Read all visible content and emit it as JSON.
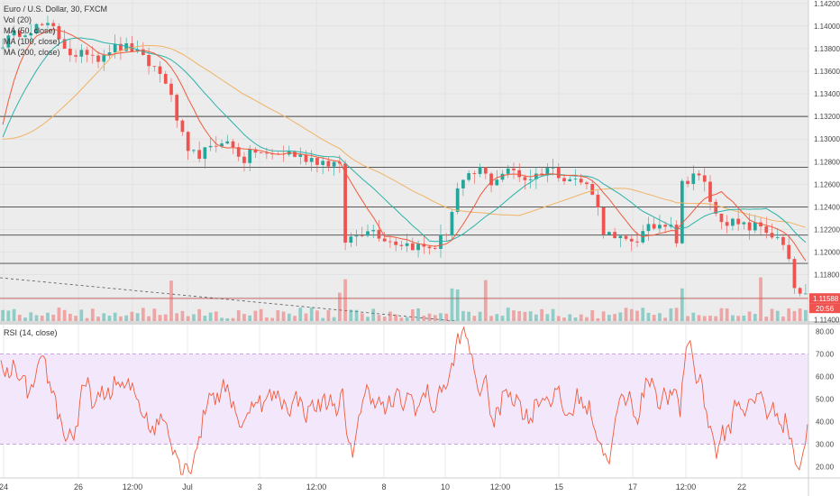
{
  "chart_data": [
    {
      "type": "candlestick",
      "title": "Euro / U.S. Dollar, 30, FXCM",
      "legend": [
        "Vol (20)",
        "MA (50, close)",
        "MA (100, close)",
        "MA (200, close)"
      ],
      "y_ticks": [
        "1.14200",
        "1.14000",
        "1.13800",
        "1.13600",
        "1.13400",
        "1.13200",
        "1.13000",
        "1.12800",
        "1.12600",
        "1.12400",
        "1.12200",
        "1.12000",
        "1.11800",
        "1.11600",
        "1.11400"
      ],
      "ylim": [
        1.1139,
        1.1423
      ],
      "x_ticks": [
        "24",
        "26",
        "12:00",
        "Jul",
        "3",
        "12:00",
        "8",
        "10",
        "12:00",
        "15",
        "17",
        "12:00",
        "22"
      ],
      "current_price": "1.11588",
      "countdown": "20:56",
      "horizontal_levels": [
        1.132,
        1.1275,
        1.124,
        1.1215,
        1.119,
        1.1159
      ],
      "colors": {
        "up": "#26a69a",
        "down": "#ef5350",
        "ma50": "#f05a3c",
        "ma100": "#2bb3a8",
        "ma200": "#f0b366"
      },
      "close_path": [
        [
          0,
          1.1385
        ],
        [
          3,
          1.1395
        ],
        [
          5,
          1.1398
        ],
        [
          7,
          1.14
        ],
        [
          9,
          1.1397
        ],
        [
          11,
          1.1383
        ],
        [
          13,
          1.137
        ],
        [
          15,
          1.1378
        ],
        [
          17,
          1.1373
        ],
        [
          19,
          1.138
        ],
        [
          21,
          1.1381
        ],
        [
          23,
          1.138
        ],
        [
          25,
          1.137
        ],
        [
          27,
          1.1363
        ],
        [
          29,
          1.1352
        ],
        [
          31,
          1.1318
        ],
        [
          33,
          1.1285
        ],
        [
          35,
          1.1287
        ],
        [
          37,
          1.129
        ],
        [
          39,
          1.13
        ],
        [
          41,
          1.1292
        ],
        [
          43,
          1.1282
        ],
        [
          45,
          1.129
        ],
        [
          47,
          1.1285
        ],
        [
          49,
          1.1287
        ],
        [
          51,
          1.1288
        ],
        [
          53,
          1.1284
        ],
        [
          55,
          1.1283
        ],
        [
          57,
          1.128
        ],
        [
          59,
          1.1278
        ],
        [
          60,
          1.1274
        ],
        [
          61,
          1.121
        ],
        [
          63,
          1.1215
        ],
        [
          65,
          1.1222
        ],
        [
          67,
          1.1216
        ],
        [
          69,
          1.121
        ],
        [
          71,
          1.1208
        ],
        [
          73,
          1.1206
        ],
        [
          75,
          1.1204
        ],
        [
          77,
          1.1205
        ],
        [
          79,
          1.1218
        ],
        [
          81,
          1.1255
        ],
        [
          83,
          1.1265
        ],
        [
          85,
          1.1273
        ],
        [
          87,
          1.1262
        ],
        [
          89,
          1.127
        ],
        [
          91,
          1.1272
        ],
        [
          93,
          1.1265
        ],
        [
          95,
          1.1268
        ],
        [
          97,
          1.1275
        ],
        [
          99,
          1.127
        ],
        [
          101,
          1.1265
        ],
        [
          103,
          1.1262
        ],
        [
          105,
          1.1255
        ],
        [
          107,
          1.122
        ],
        [
          109,
          1.121
        ],
        [
          111,
          1.121
        ],
        [
          113,
          1.1212
        ],
        [
          115,
          1.122
        ],
        [
          117,
          1.1225
        ],
        [
          119,
          1.1228
        ],
        [
          120,
          1.121
        ],
        [
          121,
          1.126
        ],
        [
          123,
          1.127
        ],
        [
          125,
          1.126
        ],
        [
          127,
          1.1232
        ],
        [
          129,
          1.1228
        ],
        [
          131,
          1.1223
        ],
        [
          133,
          1.1222
        ],
        [
          135,
          1.1223
        ],
        [
          137,
          1.1215
        ],
        [
          139,
          1.1205
        ],
        [
          140,
          1.119
        ],
        [
          141,
          1.1168
        ],
        [
          142,
          1.1162
        ],
        [
          143,
          1.1159
        ]
      ]
    },
    {
      "type": "line",
      "title": "RSI (14, close)",
      "y_ticks": [
        "80.00",
        "70.00",
        "60.00",
        "50.00",
        "40.00",
        "30.00",
        "20.00"
      ],
      "ylim": [
        15,
        83
      ],
      "bands": [
        30,
        70
      ],
      "x_ticks": [
        "24",
        "26",
        "12:00",
        "Jul",
        "3",
        "12:00",
        "8",
        "10",
        "12:00",
        "15",
        "17",
        "12:00",
        "22"
      ],
      "color": "#f05a3c"
    }
  ]
}
